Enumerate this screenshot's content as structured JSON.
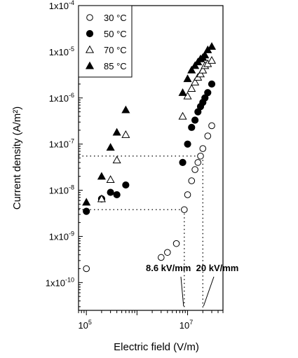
{
  "chart_data": {
    "type": "scatter",
    "xlabel": "Electric field (V/m)",
    "ylabel": "Current density (A/m²)",
    "xscale": "log",
    "yscale": "log",
    "xlim": [
      70000,
      50000000
    ],
    "ylim": [
      2.5e-11,
      0.0001
    ],
    "x_ticks": [
      {
        "value": 100000,
        "mant": "10",
        "exp": "5"
      },
      {
        "value": 10000000,
        "mant": "10",
        "exp": "7"
      }
    ],
    "y_ticks": [
      {
        "value": 0.0001,
        "mant": "1x10",
        "exp": "-4"
      },
      {
        "value": 1e-05,
        "mant": "1x10",
        "exp": "-5"
      },
      {
        "value": 1e-06,
        "mant": "1x10",
        "exp": "-6"
      },
      {
        "value": 1e-07,
        "mant": "1x10",
        "exp": "-7"
      },
      {
        "value": 1e-08,
        "mant": "1x10",
        "exp": "-8"
      },
      {
        "value": 1e-09,
        "mant": "1x10",
        "exp": "-9"
      },
      {
        "value": 1e-10,
        "mant": "1x10",
        "exp": "-10"
      }
    ],
    "legend_position": "top-left",
    "series": [
      {
        "name": "30 °C",
        "marker": "circle-open",
        "x": [
          100000,
          3000000,
          4000000,
          6000000,
          8600000,
          10000000,
          12000000,
          14000000,
          16000000,
          18000000,
          20000000,
          25000000,
          30000000
        ],
        "y": [
          2e-10,
          3.5e-10,
          4.5e-10,
          7e-10,
          3.8e-09,
          8e-09,
          1.6e-08,
          2.8e-08,
          4e-08,
          5.5e-08,
          8e-08,
          1.5e-07,
          2.5e-07
        ]
      },
      {
        "name": "50 °C",
        "marker": "circle-filled",
        "x": [
          100000,
          200000,
          300000,
          400000,
          600000,
          8000000,
          10000000,
          12000000,
          14000000,
          16000000,
          18000000,
          20000000,
          22000000,
          25000000,
          30000000
        ],
        "y": [
          3.5e-09,
          6.5e-09,
          9e-09,
          8e-09,
          1.3e-08,
          4e-08,
          1e-07,
          2.3e-07,
          3.3e-07,
          5e-07,
          6.5e-07,
          8e-07,
          1e-06,
          1.3e-06,
          2e-06
        ]
      },
      {
        "name": "70 °C",
        "marker": "triangle-open",
        "x": [
          200000,
          300000,
          400000,
          600000,
          8000000,
          10000000,
          12000000,
          14000000,
          16000000,
          18000000,
          20000000,
          22000000,
          25000000,
          30000000
        ],
        "y": [
          6.5e-09,
          1.7e-08,
          4.5e-08,
          1.6e-07,
          4e-07,
          1.1e-06,
          1.6e-06,
          2.2e-06,
          2.8e-06,
          3.3e-06,
          4e-06,
          5e-06,
          5.5e-06,
          6.5e-06
        ]
      },
      {
        "name": "85 °C",
        "marker": "triangle-filled",
        "x": [
          100000,
          200000,
          300000,
          400000,
          600000,
          8000000,
          10000000,
          12000000,
          14000000,
          16000000,
          18000000,
          20000000,
          22000000,
          25000000,
          30000000
        ],
        "y": [
          5.5e-09,
          2e-08,
          8.5e-08,
          1.8e-07,
          5.5e-07,
          1.3e-06,
          2.6e-06,
          4e-06,
          5e-06,
          6e-06,
          7e-06,
          7.5e-06,
          8.5e-06,
          1.1e-05,
          1.3e-05
        ]
      }
    ],
    "annotations": [
      {
        "text": "8.6 kV/mm",
        "x": 8600000
      },
      {
        "text": "20 kV/mm",
        "x": 20000000
      }
    ],
    "reference_levels": {
      "y_low": 3.8e-09,
      "y_high": 5.5e-08
    }
  }
}
